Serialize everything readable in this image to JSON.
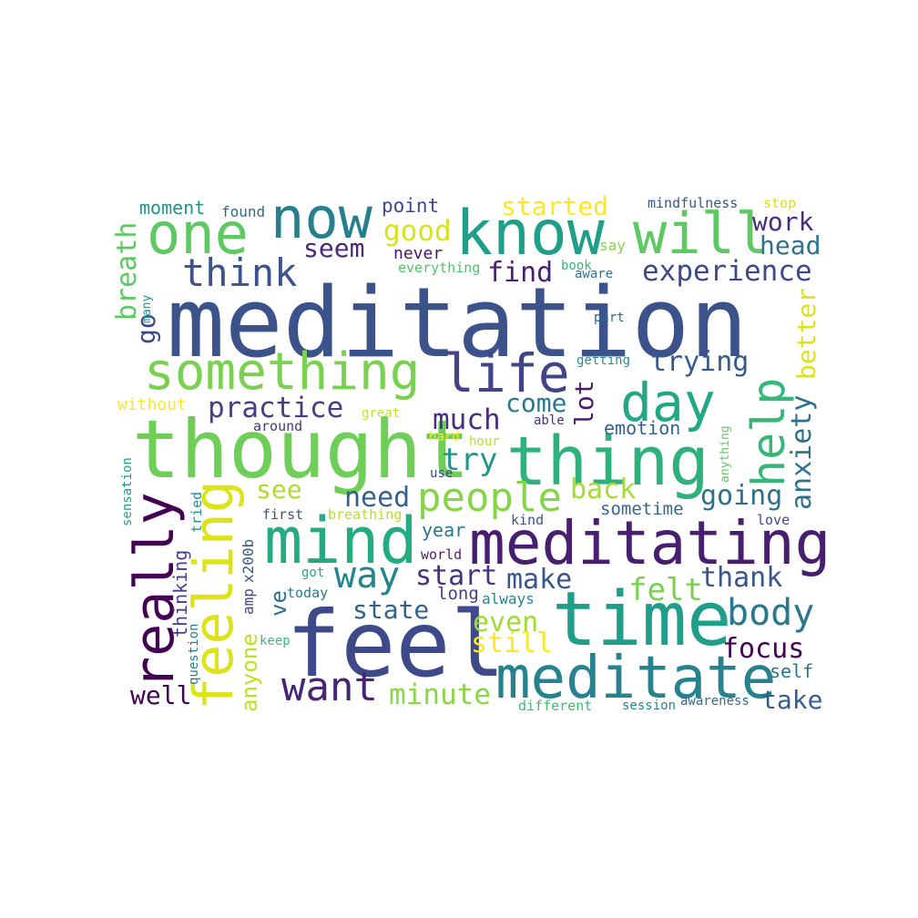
{
  "words": [
    {
      "text": "meditation",
      "color": "#3b528b",
      "rot": 0
    },
    {
      "text": "thought",
      "color": "#6ece58",
      "rot": 0
    },
    {
      "text": "feel",
      "color": "#3e4989",
      "rot": 0
    },
    {
      "text": "time",
      "color": "#1f9e89",
      "rot": 0
    },
    {
      "text": "meditating",
      "color": "#481f70",
      "rot": 0
    },
    {
      "text": "mind",
      "color": "#25ab82",
      "rot": 0
    },
    {
      "text": "thing",
      "color": "#2db27d",
      "rot": 0
    },
    {
      "text": "meditate",
      "color": "#26828e",
      "rot": 0
    },
    {
      "text": "really",
      "color": "#440154",
      "rot": 270
    },
    {
      "text": "feeling",
      "color": "#dde318",
      "rot": 270
    },
    {
      "text": "know",
      "color": "#1f9e89",
      "rot": 0
    },
    {
      "text": "something",
      "color": "#7ad151",
      "rot": 0
    },
    {
      "text": "life",
      "color": "#414487",
      "rot": 0
    },
    {
      "text": "now",
      "color": "#277f8e",
      "rot": 0
    },
    {
      "text": "one",
      "color": "#5ec962",
      "rot": 0
    },
    {
      "text": "will",
      "color": "#5ec962",
      "rot": 0
    },
    {
      "text": "day",
      "color": "#22a884",
      "rot": 0
    },
    {
      "text": "help",
      "color": "#35b779",
      "rot": 270
    },
    {
      "text": "people",
      "color": "#86d549",
      "rot": 0
    },
    {
      "text": "think",
      "color": "#3b528b",
      "rot": 0
    },
    {
      "text": "want",
      "color": "#482475",
      "rot": 0
    },
    {
      "text": "way",
      "color": "#25858e",
      "rot": 0
    },
    {
      "text": "body",
      "color": "#2a788e",
      "rot": 0
    },
    {
      "text": "experience",
      "color": "#3e4989",
      "rot": 0
    },
    {
      "text": "practice",
      "color": "#433e85",
      "rot": 0
    },
    {
      "text": "started",
      "color": "#fde725",
      "rot": 0
    },
    {
      "text": "work",
      "color": "#472d7b",
      "rot": 0
    },
    {
      "text": "head",
      "color": "#2c728e",
      "rot": 0
    },
    {
      "text": "good",
      "color": "#d8e219",
      "rot": 0
    },
    {
      "text": "seem",
      "color": "#482878",
      "rot": 0
    },
    {
      "text": "find",
      "color": "#482173",
      "rot": 0
    },
    {
      "text": "much",
      "color": "#472f7d",
      "rot": 0
    },
    {
      "text": "trying",
      "color": "#38598c",
      "rot": 0
    },
    {
      "text": "come",
      "color": "#2a788e",
      "rot": 0
    },
    {
      "text": "lot",
      "color": "#481b6d",
      "rot": 270
    },
    {
      "text": "try",
      "color": "#1f968b",
      "rot": 0
    },
    {
      "text": "back",
      "color": "#a5db36",
      "rot": 0
    },
    {
      "text": "going",
      "color": "#2d708e",
      "rot": 0
    },
    {
      "text": "anxiety",
      "color": "#2c728e",
      "rot": 270
    },
    {
      "text": "better",
      "color": "#dde318",
      "rot": 270
    },
    {
      "text": "need",
      "color": "#34618d",
      "rot": 0
    },
    {
      "text": "see",
      "color": "#addc30",
      "rot": 0
    },
    {
      "text": "start",
      "color": "#46327e",
      "rot": 0
    },
    {
      "text": "make",
      "color": "#39568c",
      "rot": 0
    },
    {
      "text": "thank",
      "color": "#3a548c",
      "rot": 0
    },
    {
      "text": "felt",
      "color": "#7ad151",
      "rot": 0
    },
    {
      "text": "state",
      "color": "#33638d",
      "rot": 0
    },
    {
      "text": "even",
      "color": "#a0da39",
      "rot": 0
    },
    {
      "text": "still",
      "color": "#fde725",
      "rot": 0
    },
    {
      "text": "focus",
      "color": "#440154",
      "rot": 0
    },
    {
      "text": "minute",
      "color": "#8bd646",
      "rot": 0
    },
    {
      "text": "well",
      "color": "#440154",
      "rot": 0
    },
    {
      "text": "take",
      "color": "#365d8d",
      "rot": 0
    },
    {
      "text": "self",
      "color": "#2a768e",
      "rot": 0
    },
    {
      "text": "breath",
      "color": "#5ec962",
      "rot": 270
    },
    {
      "text": "go",
      "color": "#404688",
      "rot": 270
    },
    {
      "text": "moment",
      "color": "#1f958b",
      "rot": 0
    },
    {
      "text": "found",
      "color": "#31688e",
      "rot": 0
    },
    {
      "text": "point",
      "color": "#3f4889",
      "rot": 0
    },
    {
      "text": "never",
      "color": "#481769",
      "rot": 0
    },
    {
      "text": "everything",
      "color": "#50c46a",
      "rot": 0
    },
    {
      "text": "say",
      "color": "#86d549",
      "rot": 0
    },
    {
      "text": "book",
      "color": "#35b779",
      "rot": 0
    },
    {
      "text": "aware",
      "color": "#2c728e",
      "rot": 0
    },
    {
      "text": "mindfulness",
      "color": "#39568c",
      "rot": 0
    },
    {
      "text": "stop",
      "color": "#d8e219",
      "rot": 0
    },
    {
      "text": "many",
      "color": "#1f988b",
      "rot": 270
    },
    {
      "text": "part",
      "color": "#33638d",
      "rot": 0
    },
    {
      "text": "getting",
      "color": "#21918c",
      "rot": 0
    },
    {
      "text": "without",
      "color": "#fde725",
      "rot": 0
    },
    {
      "text": "around",
      "color": "#453781",
      "rot": 0
    },
    {
      "text": "great",
      "color": "#c2df23",
      "rot": 0
    },
    {
      "text": "able",
      "color": "#46307e",
      "rot": 0
    },
    {
      "text": "emotion",
      "color": "#33638d",
      "rot": 0
    },
    {
      "text": "hard",
      "color": "#fde725",
      "rot": 0
    },
    {
      "text": "hour",
      "color": "#bddf26",
      "rot": 0
    },
    {
      "text": "use",
      "color": "#404688",
      "rot": 0
    },
    {
      "text": "anything",
      "color": "#5ec962",
      "rot": 270
    },
    {
      "text": "sometime",
      "color": "#31688e",
      "rot": 0
    },
    {
      "text": "sensation",
      "color": "#1f9e89",
      "rot": 270
    },
    {
      "text": "tried",
      "color": "#21918c",
      "rot": 270
    },
    {
      "text": "first",
      "color": "#3b528b",
      "rot": 0
    },
    {
      "text": "breathing",
      "color": "#b5de2b",
      "rot": 0
    },
    {
      "text": "kind",
      "color": "#39568c",
      "rot": 0
    },
    {
      "text": "love",
      "color": "#3e4989",
      "rot": 0
    },
    {
      "text": "year",
      "color": "#2a768e",
      "rot": 0
    },
    {
      "text": "world",
      "color": "#481f70",
      "rot": 0
    },
    {
      "text": "x200b",
      "color": "#38598c",
      "rot": 270
    },
    {
      "text": "amp",
      "color": "#404688",
      "rot": 270
    },
    {
      "text": "anyone",
      "color": "#c2df23",
      "rot": 270
    },
    {
      "text": "ve",
      "color": "#2c728e",
      "rot": 270
    },
    {
      "text": "thinking",
      "color": "#424086",
      "rot": 270
    },
    {
      "text": "question",
      "color": "#287c8e",
      "rot": 270
    },
    {
      "text": "got",
      "color": "#22a884",
      "rot": 0
    },
    {
      "text": "today",
      "color": "#2a788e",
      "rot": 0
    },
    {
      "text": "long",
      "color": "#433e85",
      "rot": 0
    },
    {
      "text": "always",
      "color": "#24868e",
      "rot": 0
    },
    {
      "text": "keep",
      "color": "#38b977",
      "rot": 0
    },
    {
      "text": "different",
      "color": "#3fbc73",
      "rot": 0
    },
    {
      "text": "session",
      "color": "#25848e",
      "rot": 0
    },
    {
      "text": "awareness",
      "color": "#31688e",
      "rot": 0
    }
  ]
}
